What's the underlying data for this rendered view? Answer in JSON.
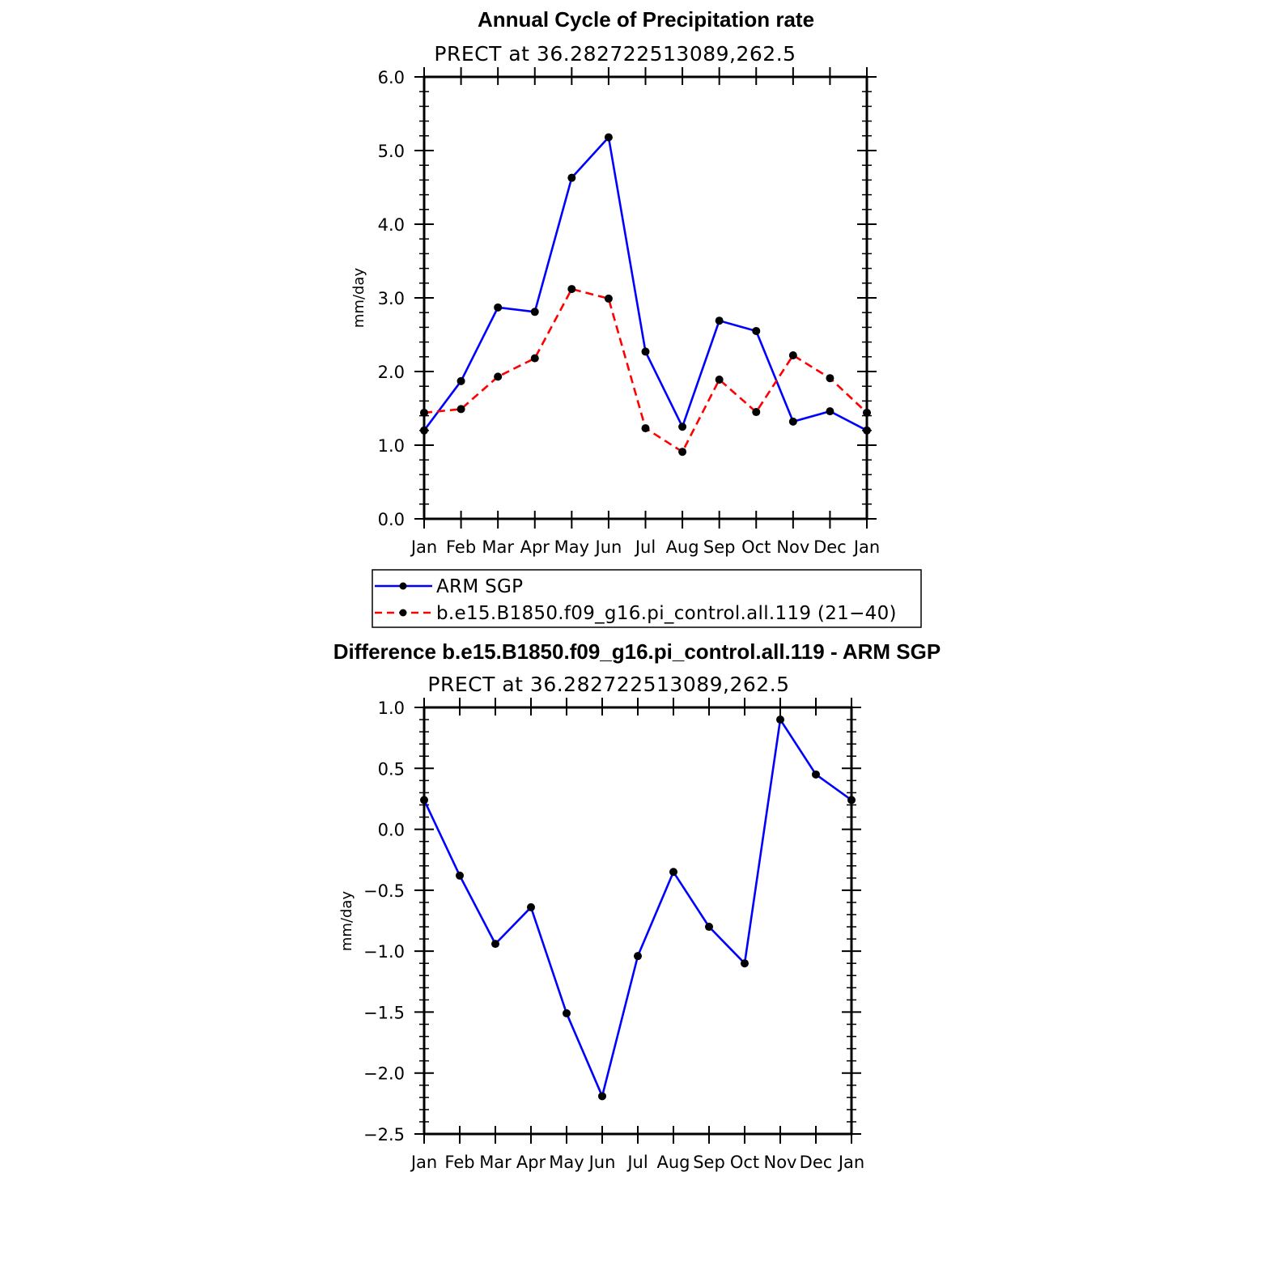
{
  "chart_data": [
    {
      "type": "line",
      "title": "Annual Cycle of Precipitation rate",
      "subtitle": "PRECT at 36.282722513089,262.5",
      "ylabel": "mm/day",
      "ylim": [
        0,
        6
      ],
      "yticks": [
        "0.0",
        "1.0",
        "2.0",
        "3.0",
        "4.0",
        "5.0",
        "6.0"
      ],
      "categories": [
        "Jan",
        "Feb",
        "Mar",
        "Apr",
        "May",
        "Jun",
        "Jul",
        "Aug",
        "Sep",
        "Oct",
        "Nov",
        "Dec",
        "Jan"
      ],
      "legend_position": "bottom",
      "series": [
        {
          "name": "ARM SGP",
          "color": "#0000ff",
          "dash": "solid",
          "values": [
            1.2,
            1.87,
            2.87,
            2.81,
            4.63,
            5.18,
            2.27,
            1.25,
            2.69,
            2.55,
            1.32,
            1.46,
            1.2
          ]
        },
        {
          "name": "b.e15.B1850.f09_g16.pi_control.all.119 (21−40)",
          "color": "#ff0000",
          "dash": "dashed",
          "values": [
            1.44,
            1.49,
            1.93,
            2.18,
            3.12,
            2.99,
            1.23,
            0.91,
            1.89,
            1.45,
            2.22,
            1.91,
            1.44
          ]
        }
      ]
    },
    {
      "type": "line",
      "title": "Difference b.e15.B1850.f09_g16.pi_control.all.119 - ARM SGP",
      "subtitle": "PRECT at 36.282722513089,262.5",
      "ylabel": "mm/day",
      "ylim": [
        -2.5,
        1.0
      ],
      "yticks": [
        "−2.5",
        "−2.0",
        "−1.5",
        "−1.0",
        "−0.5",
        "0.0",
        "0.5",
        "1.0"
      ],
      "categories": [
        "Jan",
        "Feb",
        "Mar",
        "Apr",
        "May",
        "Jun",
        "Jul",
        "Aug",
        "Sep",
        "Oct",
        "Nov",
        "Dec",
        "Jan"
      ],
      "series": [
        {
          "color": "#0000ff",
          "dash": "solid",
          "values": [
            0.24,
            -0.38,
            -0.94,
            -0.64,
            -1.51,
            -2.19,
            -1.04,
            -0.35,
            -0.8,
            -1.1,
            0.9,
            0.45,
            0.24
          ]
        }
      ]
    }
  ]
}
